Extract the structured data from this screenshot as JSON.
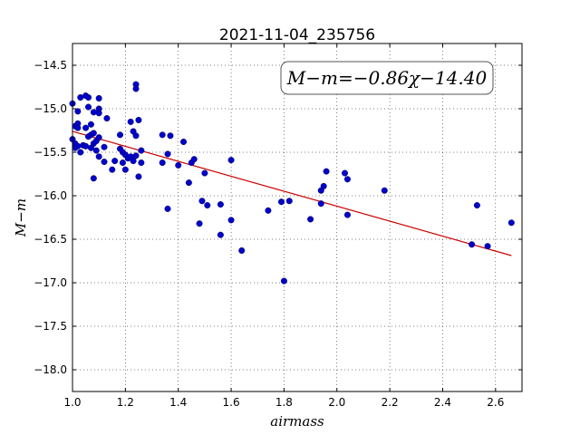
{
  "chart_data": {
    "type": "scatter",
    "title": "2021-11-04_235756",
    "xlabel": "airmass",
    "ylabel": "M−m",
    "xlim": [
      1.0,
      2.7
    ],
    "ylim": [
      -18.25,
      -14.25
    ],
    "x_ticks": [
      1.0,
      1.2,
      1.4,
      1.6,
      1.8,
      2.0,
      2.2,
      2.4,
      2.6
    ],
    "x_tick_labels": [
      "1.0",
      "1.2",
      "1.4",
      "1.6",
      "1.8",
      "2.0",
      "2.2",
      "2.4",
      "2.6"
    ],
    "y_ticks": [
      -14.5,
      -15.0,
      -15.5,
      -16.0,
      -16.5,
      -17.0,
      -17.5,
      -18.0
    ],
    "y_tick_labels": [
      "−14.5",
      "−15.0",
      "−15.5",
      "−16.0",
      "−16.5",
      "−17.0",
      "−17.5",
      "−18.0"
    ],
    "grid": true,
    "annotation": "M−m=−0.86χ−14.40",
    "fit": {
      "slope": -0.86,
      "intercept": -14.4,
      "x_range": [
        1.0,
        2.66
      ],
      "color": "#cc0000"
    },
    "marker_color": "#0000cc",
    "points": [
      {
        "x": 1.0,
        "y": -14.94
      },
      {
        "x": 1.0,
        "y": -15.35
      },
      {
        "x": 1.01,
        "y": -15.2
      },
      {
        "x": 1.01,
        "y": -15.4
      },
      {
        "x": 1.01,
        "y": -15.45
      },
      {
        "x": 1.02,
        "y": -15.17
      },
      {
        "x": 1.02,
        "y": -15.22
      },
      {
        "x": 1.02,
        "y": -15.43
      },
      {
        "x": 1.02,
        "y": -15.03
      },
      {
        "x": 1.03,
        "y": -14.87
      },
      {
        "x": 1.03,
        "y": -15.5
      },
      {
        "x": 1.04,
        "y": -15.42
      },
      {
        "x": 1.05,
        "y": -14.85
      },
      {
        "x": 1.05,
        "y": -15.43
      },
      {
        "x": 1.05,
        "y": -15.22
      },
      {
        "x": 1.06,
        "y": -14.98
      },
      {
        "x": 1.06,
        "y": -15.32
      },
      {
        "x": 1.06,
        "y": -14.87
      },
      {
        "x": 1.07,
        "y": -15.18
      },
      {
        "x": 1.07,
        "y": -15.3
      },
      {
        "x": 1.07,
        "y": -15.45
      },
      {
        "x": 1.08,
        "y": -15.04
      },
      {
        "x": 1.08,
        "y": -15.28
      },
      {
        "x": 1.08,
        "y": -15.4
      },
      {
        "x": 1.08,
        "y": -15.8
      },
      {
        "x": 1.09,
        "y": -15.37
      },
      {
        "x": 1.09,
        "y": -15.48
      },
      {
        "x": 1.1,
        "y": -14.88
      },
      {
        "x": 1.1,
        "y": -15.0
      },
      {
        "x": 1.1,
        "y": -15.05
      },
      {
        "x": 1.1,
        "y": -15.33
      },
      {
        "x": 1.1,
        "y": -15.55
      },
      {
        "x": 1.12,
        "y": -15.44
      },
      {
        "x": 1.12,
        "y": -15.61
      },
      {
        "x": 1.13,
        "y": -15.11
      },
      {
        "x": 1.15,
        "y": -15.7
      },
      {
        "x": 1.16,
        "y": -15.6
      },
      {
        "x": 1.18,
        "y": -15.3
      },
      {
        "x": 1.18,
        "y": -15.46
      },
      {
        "x": 1.19,
        "y": -15.5
      },
      {
        "x": 1.19,
        "y": -15.62
      },
      {
        "x": 1.2,
        "y": -15.53
      },
      {
        "x": 1.2,
        "y": -15.7
      },
      {
        "x": 1.21,
        "y": -15.57
      },
      {
        "x": 1.22,
        "y": -15.15
      },
      {
        "x": 1.22,
        "y": -15.55
      },
      {
        "x": 1.23,
        "y": -15.6
      },
      {
        "x": 1.23,
        "y": -15.26
      },
      {
        "x": 1.24,
        "y": -14.72
      },
      {
        "x": 1.24,
        "y": -14.77
      },
      {
        "x": 1.24,
        "y": -15.31
      },
      {
        "x": 1.24,
        "y": -15.54
      },
      {
        "x": 1.25,
        "y": -15.13
      },
      {
        "x": 1.25,
        "y": -15.78
      },
      {
        "x": 1.26,
        "y": -15.48
      },
      {
        "x": 1.26,
        "y": -15.62
      },
      {
        "x": 1.34,
        "y": -15.3
      },
      {
        "x": 1.34,
        "y": -15.62
      },
      {
        "x": 1.36,
        "y": -15.52
      },
      {
        "x": 1.36,
        "y": -16.15
      },
      {
        "x": 1.37,
        "y": -15.31
      },
      {
        "x": 1.4,
        "y": -15.65
      },
      {
        "x": 1.42,
        "y": -15.38
      },
      {
        "x": 1.44,
        "y": -15.85
      },
      {
        "x": 1.45,
        "y": -15.62
      },
      {
        "x": 1.46,
        "y": -15.58
      },
      {
        "x": 1.48,
        "y": -16.32
      },
      {
        "x": 1.49,
        "y": -16.06
      },
      {
        "x": 1.5,
        "y": -15.74
      },
      {
        "x": 1.51,
        "y": -16.11
      },
      {
        "x": 1.56,
        "y": -16.45
      },
      {
        "x": 1.56,
        "y": -16.1
      },
      {
        "x": 1.6,
        "y": -16.28
      },
      {
        "x": 1.6,
        "y": -15.59
      },
      {
        "x": 1.64,
        "y": -16.63
      },
      {
        "x": 1.74,
        "y": -16.17
      },
      {
        "x": 1.79,
        "y": -16.07
      },
      {
        "x": 1.8,
        "y": -16.98
      },
      {
        "x": 1.82,
        "y": -16.06
      },
      {
        "x": 1.9,
        "y": -16.27
      },
      {
        "x": 1.94,
        "y": -15.94
      },
      {
        "x": 1.94,
        "y": -16.09
      },
      {
        "x": 1.95,
        "y": -15.89
      },
      {
        "x": 1.96,
        "y": -15.72
      },
      {
        "x": 2.03,
        "y": -15.74
      },
      {
        "x": 2.04,
        "y": -15.81
      },
      {
        "x": 2.04,
        "y": -16.22
      },
      {
        "x": 2.18,
        "y": -15.94
      },
      {
        "x": 2.51,
        "y": -16.56
      },
      {
        "x": 2.53,
        "y": -16.11
      },
      {
        "x": 2.57,
        "y": -16.58
      },
      {
        "x": 2.66,
        "y": -16.31
      }
    ]
  }
}
